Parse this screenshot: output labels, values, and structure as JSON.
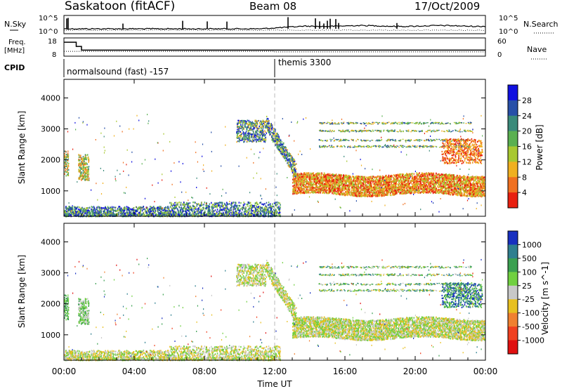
{
  "header": {
    "site": "Saskatoon (fitACF)",
    "beam": "Beam 08",
    "date": "17/Oct/2009"
  },
  "strip_nsky": {
    "left_label": "N.Sky",
    "right_label": "N.Search",
    "left_ticks": [
      "10^5",
      "10^0"
    ],
    "right_ticks": [
      "10^5",
      "10^0"
    ]
  },
  "strip_freq": {
    "left_label_1": "Freq.",
    "left_label_2": "[MHz]",
    "right_label": "Nave",
    "left_ticks": [
      "18",
      "8"
    ],
    "right_ticks": [
      "60",
      "0"
    ],
    "freq_steps": [
      {
        "t": 0.0,
        "mhz": 16.8
      },
      {
        "t": 0.7,
        "mhz": 13.5
      },
      {
        "t": 1.0,
        "mhz": 10.6
      },
      {
        "t": 24.0,
        "mhz": 10.6
      }
    ],
    "nave_steps": [
      {
        "t": 0.0,
        "n": 16
      },
      {
        "t": 1.0,
        "n": 16
      },
      {
        "t": 12.0,
        "n": 14
      },
      {
        "t": 24.0,
        "n": 14
      }
    ]
  },
  "cpid": {
    "label": "CPID",
    "modes": [
      {
        "start": 0.0,
        "text": "normalsound (fast) -157"
      },
      {
        "start": 12.0,
        "text": "themis 3300"
      }
    ]
  },
  "power_panel": {
    "ylabel": "Slant Range [km]",
    "cbar_label": "Power [dB]",
    "cbar_ticks": [
      "4",
      "8",
      "12",
      "16",
      "20",
      "24",
      "28"
    ],
    "cbar_colors": [
      "#1010e0",
      "#2850a8",
      "#3a8a7a",
      "#5ab050",
      "#a8c830",
      "#f0b020",
      "#f07020",
      "#e82010"
    ]
  },
  "velocity_panel": {
    "ylabel": "Slant Range [km]",
    "cbar_label": "Velocity [m s^-1]",
    "cbar_ticks": [
      "1000",
      "500",
      "100",
      "25",
      "-25",
      "-100",
      "-500",
      "-1000"
    ],
    "cbar_colors": [
      "#1830c0",
      "#2f7f8f",
      "#3aa050",
      "#70d040",
      "#c8c8c8",
      "#e8c020",
      "#f08030",
      "#f04020",
      "#e01010"
    ]
  },
  "chart_data": {
    "type": "heatmap",
    "title": "Saskatoon (fitACF)  Beam 08  17/Oct/2009",
    "xlabel": "Time UT",
    "ylabel": "Slant Range [km]",
    "x_ticks": [
      "00:00",
      "04:00",
      "08:00",
      "12:00",
      "16:00",
      "20:00",
      "00:00"
    ],
    "y_ticks": [
      "1000",
      "2000",
      "3000",
      "4000"
    ],
    "xlim_hours": [
      0,
      24
    ],
    "ylim_km": [
      180,
      4600
    ],
    "cpid_change_hour": 12.0,
    "scatter_regions": [
      {
        "name": "ground-scatter-band",
        "t0": 0.0,
        "t1": 12.3,
        "r0": 180,
        "r1": 650
      },
      {
        "name": "early-echo",
        "t0": 0.8,
        "t1": 1.4,
        "r0": 1350,
        "r1": 2200
      },
      {
        "name": "arc-echo",
        "t0": 9.8,
        "t1": 13.2,
        "r0": 1600,
        "r1": 3300
      },
      {
        "name": "main-band",
        "t0": 13.0,
        "t1": 24.0,
        "r0": 850,
        "r1": 1650
      },
      {
        "name": "upper-streaks",
        "t0": 14.5,
        "t1": 23.2,
        "r0": 2300,
        "r1": 3350
      },
      {
        "name": "late-patch",
        "t0": 21.5,
        "t1": 23.8,
        "r0": 1900,
        "r1": 2700
      }
    ]
  }
}
